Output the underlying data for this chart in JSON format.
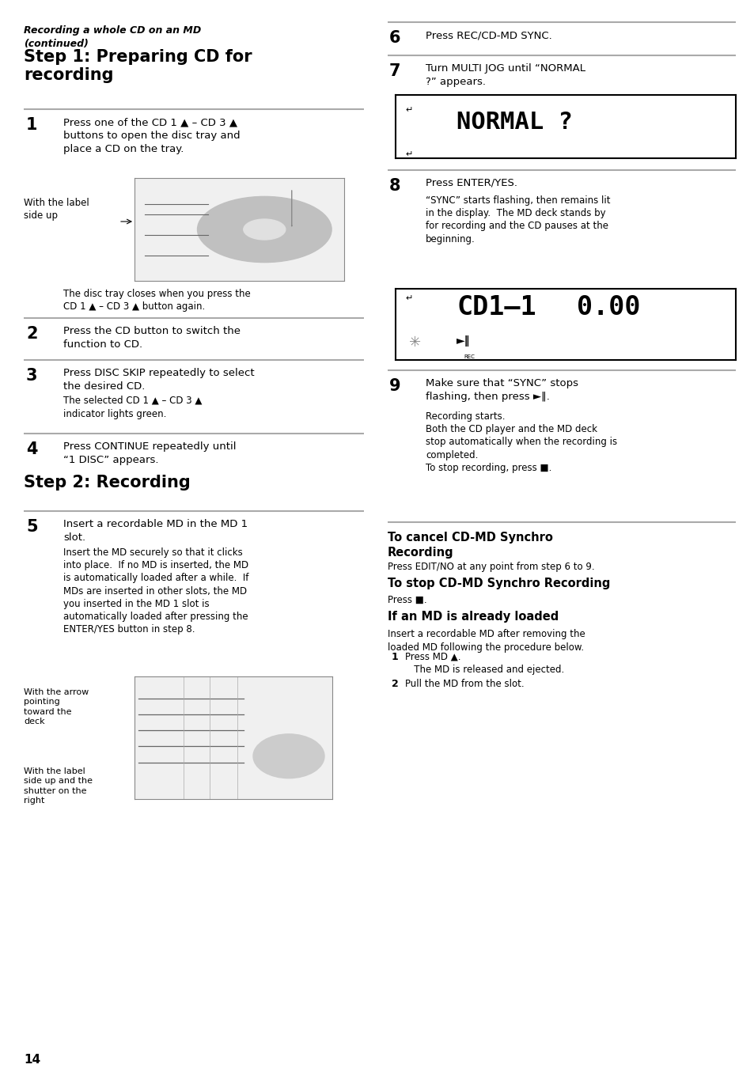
{
  "bg_color": "#ffffff",
  "text_color": "#000000",
  "sep_color": "#aaaaaa",
  "italic_header": "Recording a whole CD on an MD\n(continued)",
  "step1_title": "Step 1: Preparing CD for\nrecording",
  "step2_title": "Step 2: Recording",
  "step1_items": [
    {
      "num": "1",
      "bold_text": "Press one of the CD 1 ▲ – CD 3 ▲\nbuttons to open the disc tray and\nplace a CD on the tray.",
      "sub_text": ""
    },
    {
      "num": "2",
      "bold_text": "Press the CD button to switch the\nfunction to CD.",
      "sub_text": ""
    },
    {
      "num": "3",
      "bold_text": "Press DISC SKIP repeatedly to select\nthe desired CD.",
      "sub_text": "The selected CD 1 ▲ – CD 3 ▲\nindicator lights green."
    },
    {
      "num": "4",
      "bold_text": "Press CONTINUE repeatedly until\n“1 DISC” appears.",
      "sub_text": ""
    }
  ],
  "img_label1": "With the label\nside up",
  "disc_note": "The disc tray closes when you press the\nCD 1 ▲ – CD 3 ▲ button again.",
  "step5_bold": "Insert a recordable MD in the MD 1\nslot.",
  "step5_sub": "Insert the MD securely so that it clicks\ninto place.  If no MD is inserted, the MD\nis automatically loaded after a while.  If\nMDs are inserted in other slots, the MD\nyou inserted in the MD 1 slot is\nautomatically loaded after pressing the\nENTER/YES button in step 8.",
  "img2_label1": "With the arrow\npointing\ntoward the\ndeck",
  "img2_label2": "With the label\nside up and the\nshutter on the\nright",
  "right_items": [
    {
      "num": "6",
      "bold_text": "Press REC/CD-MD SYNC.",
      "sub_text": ""
    },
    {
      "num": "7",
      "bold_text": "Turn MULTI JOG until “NORMAL\n?” appears.",
      "sub_text": ""
    },
    {
      "num": "8",
      "bold_text": "Press ENTER/YES.",
      "sub_text": "“SYNC” starts flashing, then remains lit\nin the display.  The MD deck stands by\nfor recording and the CD pauses at the\nbeginning."
    },
    {
      "num": "9",
      "bold_text": "Make sure that “SYNC” stops\nflashing, then press ►‖.",
      "sub_text": "Recording starts.\nBoth the CD player and the MD deck\nstop automatically when the recording is\ncompleted.\nTo stop recording, press ■."
    }
  ],
  "display1_char1": "↵",
  "display1_char2": "↵",
  "display1_main": "NORMAL ?",
  "display2_left": "CD1–1",
  "display2_right": "0.00",
  "cancel_title": "To cancel CD-MD Synchro\nRecording",
  "cancel_body": "Press EDIT/NO at any point from step 6 to 9.",
  "stop_title": "To stop CD-MD Synchro Recording",
  "stop_body": "Press ■.",
  "loaded_title": "If an MD is already loaded",
  "loaded_body": "Insert a recordable MD after removing the\nloaded MD following the procedure below.",
  "loaded_item1_bold": "1",
  "loaded_item1_text": "Press MD ▲.\n   The MD is released and ejected.",
  "loaded_item2_bold": "2",
  "loaded_item2_text": "Pull the MD from the slot.",
  "page_num": "14"
}
